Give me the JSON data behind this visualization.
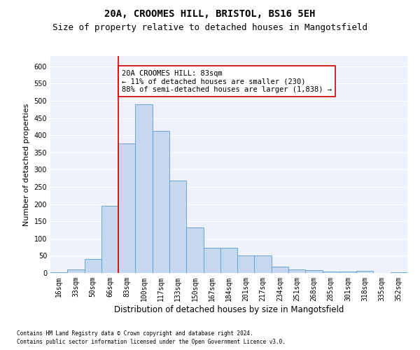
{
  "title1": "20A, CROOMES HILL, BRISTOL, BS16 5EH",
  "title2": "Size of property relative to detached houses in Mangotsfield",
  "xlabel": "Distribution of detached houses by size in Mangotsfield",
  "ylabel": "Number of detached properties",
  "categories": [
    "16sqm",
    "33sqm",
    "50sqm",
    "66sqm",
    "83sqm",
    "100sqm",
    "117sqm",
    "133sqm",
    "150sqm",
    "167sqm",
    "184sqm",
    "201sqm",
    "217sqm",
    "234sqm",
    "251sqm",
    "268sqm",
    "285sqm",
    "301sqm",
    "318sqm",
    "335sqm",
    "352sqm"
  ],
  "values": [
    3,
    10,
    40,
    195,
    375,
    490,
    413,
    268,
    132,
    73,
    73,
    50,
    50,
    18,
    10,
    8,
    5,
    5,
    6,
    1,
    2
  ],
  "bar_color": "#c5d8f0",
  "bar_edge_color": "#5b9bd5",
  "red_line_index": 4,
  "red_line_color": "#cc0000",
  "annotation_text": "20A CROOMES HILL: 83sqm\n← 11% of detached houses are smaller (230)\n88% of semi-detached houses are larger (1,838) →",
  "annotation_box_color": "#ffffff",
  "annotation_box_edge": "#cc0000",
  "ylim": [
    0,
    630
  ],
  "yticks": [
    0,
    50,
    100,
    150,
    200,
    250,
    300,
    350,
    400,
    450,
    500,
    550,
    600
  ],
  "footer1": "Contains HM Land Registry data © Crown copyright and database right 2024.",
  "footer2": "Contains public sector information licensed under the Open Government Licence v3.0.",
  "bg_color": "#eef2fa",
  "grid_color": "#ffffff",
  "title1_fontsize": 10,
  "title2_fontsize": 9,
  "xlabel_fontsize": 8.5,
  "ylabel_fontsize": 8,
  "tick_fontsize": 7,
  "annotation_fontsize": 7.5,
  "footer_fontsize": 5.5
}
